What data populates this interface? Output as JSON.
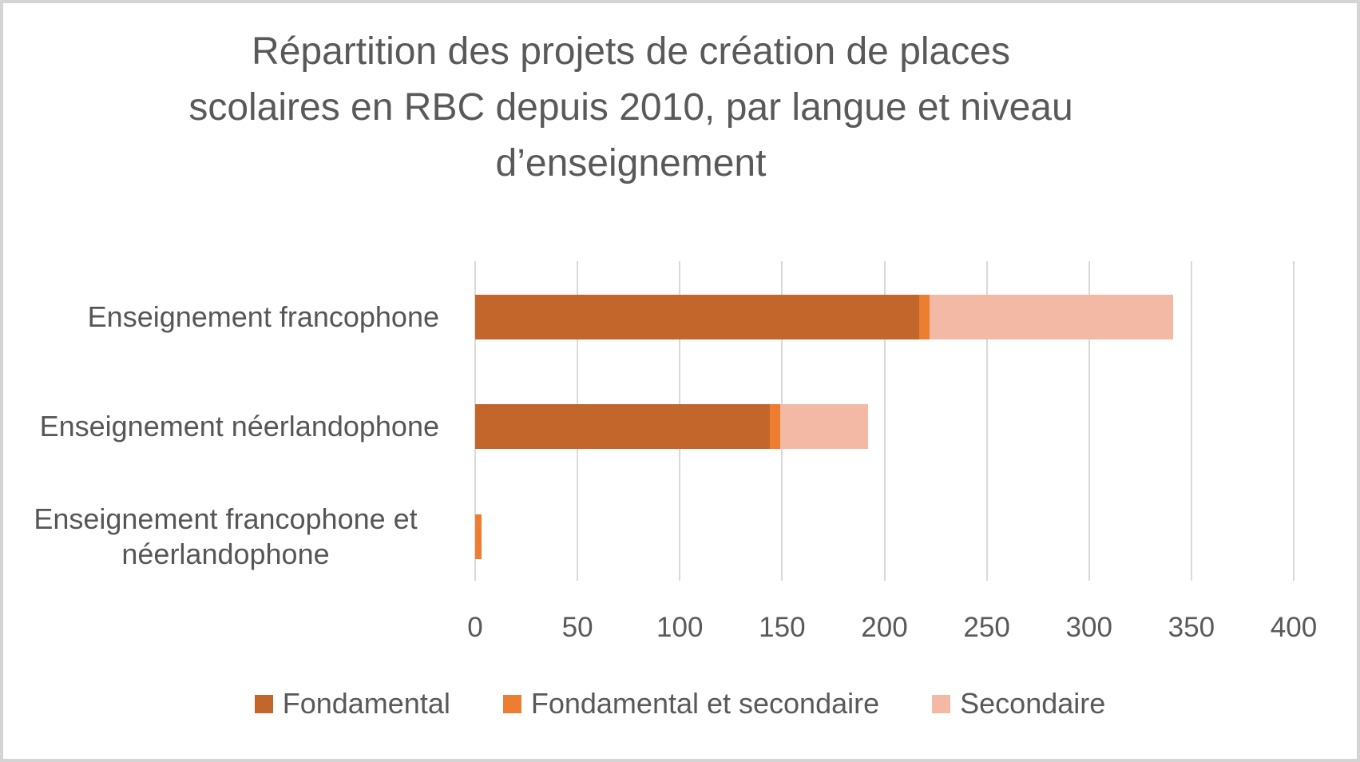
{
  "chart_data": {
    "type": "bar",
    "orientation": "horizontal",
    "stacked": true,
    "title": "Répartition des projets de création de places scolaires en RBC depuis 2010, par langue et niveau d’enseignement",
    "title_lines": [
      "Répartition des projets de création de places",
      "scolaires en RBC depuis 2010, par langue et niveau",
      "d’enseignement"
    ],
    "categories": [
      "Enseignement francophone",
      "Enseignement néerlandophone",
      "Enseignement francophone et néerlandophone"
    ],
    "series": [
      {
        "name": "Fondamental",
        "color": "#C2662B",
        "values": [
          217,
          144,
          0
        ]
      },
      {
        "name": "Fondamental et secondaire",
        "color": "#ED7D31",
        "values": [
          5,
          5,
          3
        ]
      },
      {
        "name": "Secondaire",
        "color": "#F4B9A5",
        "values": [
          119,
          43,
          0
        ]
      }
    ],
    "totals": [
      341,
      192,
      3
    ],
    "x_axis": {
      "min": 0,
      "max": 400,
      "tick_interval": 50,
      "tick_labels": [
        "0",
        "50",
        "100",
        "150",
        "200",
        "250",
        "300",
        "350",
        "400"
      ]
    },
    "legend_position": "bottom",
    "grid": true,
    "colors": {
      "gridline": "#D9D9D9",
      "text": "#595959",
      "frame_border": "#D4D4D4",
      "background": "#FFFFFF"
    }
  }
}
